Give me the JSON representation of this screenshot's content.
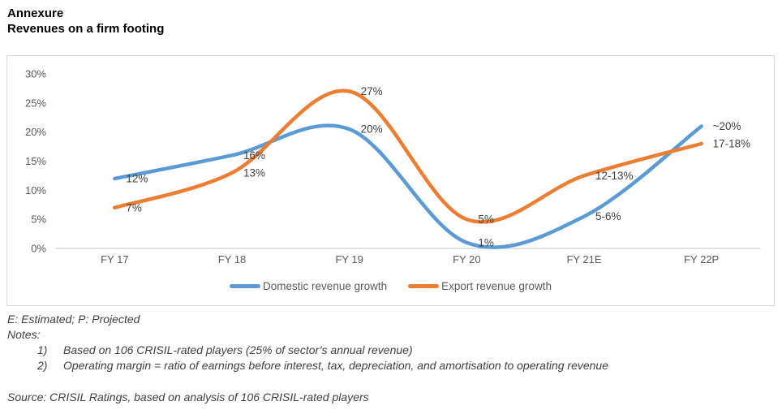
{
  "header": {
    "title": "Annexure",
    "subtitle": "Revenues on a firm footing"
  },
  "chart_data": {
    "type": "line",
    "smooth": true,
    "categories": [
      "FY 17",
      "FY 18",
      "FY 19",
      "FY 20",
      "FY 21E",
      "FY 22P"
    ],
    "series": [
      {
        "name": "Domestic revenue growth",
        "color": "#5B9BD5",
        "values": [
          12,
          16,
          20.5,
          1,
          5.5,
          21
        ],
        "point_labels": [
          "12%",
          "16%",
          "20%",
          "1%",
          "5-6%",
          "~20%"
        ]
      },
      {
        "name": "Export revenue growth",
        "color": "#ED7D31",
        "values": [
          7,
          13,
          27,
          5,
          12.5,
          18
        ],
        "point_labels": [
          "7%",
          "13%",
          "27%",
          "5%",
          "12-13%",
          "17-18%"
        ]
      }
    ],
    "title": "Revenues on a firm footing",
    "xlabel": "",
    "ylabel": "",
    "ylim": [
      0,
      30
    ],
    "yticks": [
      "30%",
      "25%",
      "20%",
      "15%",
      "10%",
      "5%",
      "0%"
    ],
    "grid": false,
    "legend_position": "bottom",
    "axis_color": "#BFBFBF",
    "label_color": "#404040",
    "tick_color": "#595959"
  },
  "footer": {
    "estimate_note": "E: Estimated; P: Projected",
    "notes_label": "Notes:",
    "notes": [
      {
        "num": "1)",
        "text": "Based on 106 CRISIL-rated players (25% of sector’s annual revenue)"
      },
      {
        "num": "2)",
        "text": "Operating margin = ratio of earnings before interest, tax, depreciation, and amortisation to operating revenue"
      }
    ],
    "source": "Source: CRISIL Ratings, based on analysis of 106 CRISIL-rated players"
  }
}
